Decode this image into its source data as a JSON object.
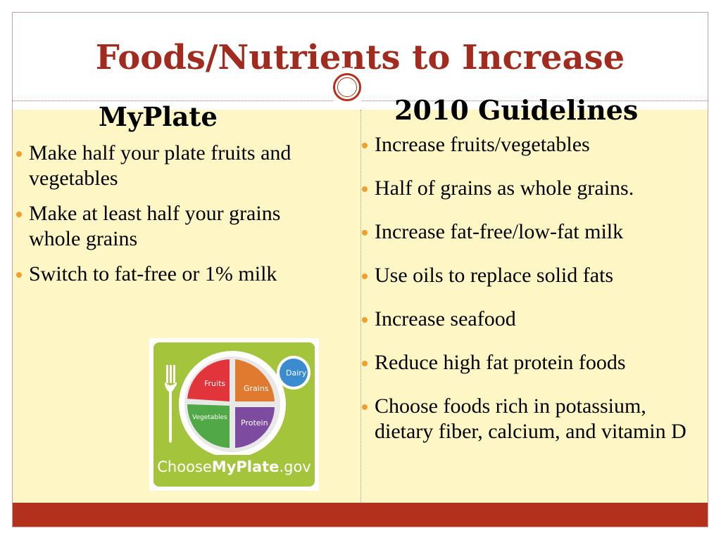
{
  "slide": {
    "title": "Foods/Nutrients to Increase",
    "colors": {
      "title": "#a02b1e",
      "panel": "#fef6c4",
      "footer": "#b3301c",
      "bullet": "#f0a030"
    }
  },
  "left": {
    "heading": "MyPlate",
    "bullets": [
      "Make half your plate fruits and vegetables",
      "Make at least half your grains whole grains",
      "Switch to fat-free or 1% milk"
    ]
  },
  "right": {
    "heading": "2010 Guidelines",
    "bullets": [
      "Increase fruits/vegetables",
      "Half of grains as whole grains.",
      "Increase fat-free/low-fat milk",
      "Use oils to replace solid fats",
      "Increase seafood",
      "Reduce high fat protein foods",
      "Choose foods rich in potassium, dietary fiber, calcium, and vitamin D"
    ]
  },
  "myplate": {
    "sections": [
      "Fruits",
      "Grains",
      "Vegetables",
      "Protein"
    ],
    "dairy": "Dairy",
    "caption_choose": "Choose",
    "caption_myplate": "MyPlate",
    "caption_gov": ".gov",
    "icons": [
      "fork-icon",
      "plate-icon",
      "dairy-cup-icon"
    ]
  }
}
